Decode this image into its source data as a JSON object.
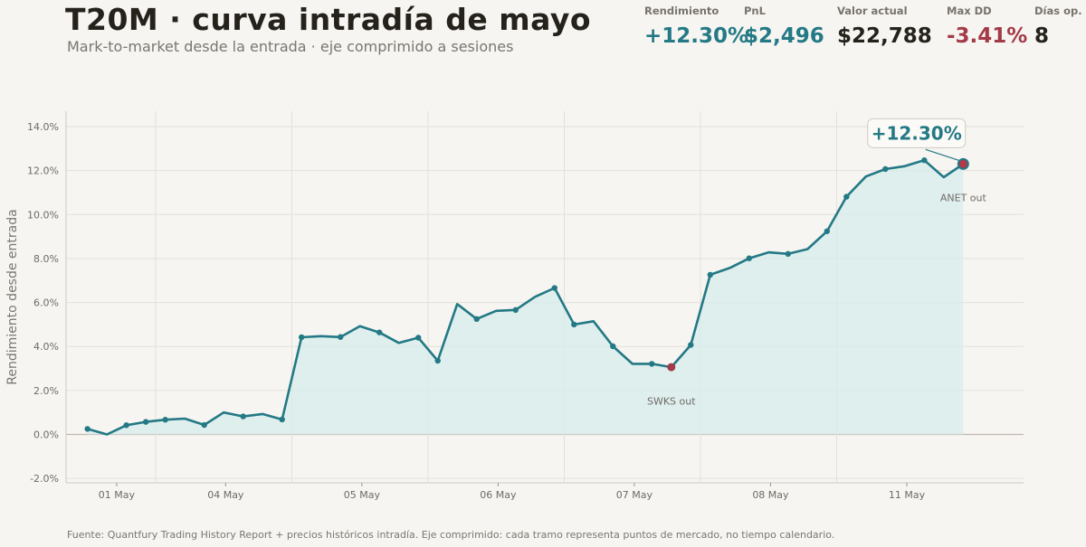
{
  "header": {
    "title": "T20M · curva intradía de mayo",
    "subtitle": "Mark-to-market desde la entrada · eje comprimido a sesiones"
  },
  "kpis": [
    {
      "label": "Rendimiento",
      "value": "+12.30%",
      "color": "#237985"
    },
    {
      "label": "PnL",
      "value": "$2,496",
      "color": "#237985"
    },
    {
      "label": "Valor actual",
      "value": "$22,788",
      "color": "#25221c"
    },
    {
      "label": "Max DD",
      "value": "-3.41%",
      "color": "#a33a48"
    },
    {
      "label": "Días op.",
      "value": "8",
      "color": "#25221c"
    }
  ],
  "footer": "Fuente: Quantfury Trading History Report + precios históricos intradía. Eje comprimido: cada tramo representa puntos de mercado, no tiempo calendario.",
  "colors": {
    "line": "#237985",
    "fill": "#d7ecec",
    "low_marker": "#a33a48",
    "end_marker": "#b0394a",
    "grid": "#e3e0da",
    "zero_line": "#bdb9b2"
  },
  "chart_data": {
    "type": "line",
    "ylabel": "Rendimiento desde entrada",
    "ylim": [
      -2.2,
      14.7
    ],
    "yticks": [
      -2,
      0,
      2,
      4,
      6,
      8,
      10,
      12,
      14
    ],
    "ytick_labels": [
      "-2.0%",
      "0.0%",
      "2.0%",
      "4.0%",
      "6.0%",
      "8.0%",
      "10.0%",
      "12.0%",
      "14.0%"
    ],
    "xlim": [
      -1.1,
      48.1
    ],
    "x_ticks": [
      {
        "label": "01 May",
        "x": 1.5
      },
      {
        "label": "04 May",
        "x": 7.1
      },
      {
        "label": "05 May",
        "x": 14.1
      },
      {
        "label": "06 May",
        "x": 21.1
      },
      {
        "label": "07 May",
        "x": 28.1
      },
      {
        "label": "08 May",
        "x": 35.1
      },
      {
        "label": "11 May",
        "x": 42.1
      }
    ],
    "session_breaks": [
      3.5,
      10.5,
      17.5,
      24.5,
      31.5,
      38.5
    ],
    "grid": true,
    "series": [
      {
        "values": [
          0.25,
          0.0,
          0.42,
          0.57,
          0.67,
          0.72,
          0.43,
          1.0,
          0.82,
          0.93,
          0.68,
          4.42,
          4.47,
          4.43,
          4.92,
          4.64,
          4.16,
          4.4,
          3.35,
          5.93,
          5.25,
          5.62,
          5.66,
          6.26,
          6.66,
          5.0,
          5.15,
          4.01,
          3.21,
          3.21,
          3.06,
          4.07,
          7.26,
          7.57,
          8.01,
          8.28,
          8.21,
          8.43,
          9.24,
          10.81,
          11.73,
          12.07,
          12.2,
          12.47,
          11.7,
          12.3
        ],
        "markers": [
          0,
          2,
          3,
          4,
          6,
          8,
          10,
          11,
          13,
          15,
          17,
          18,
          20,
          22,
          24,
          25,
          27,
          29,
          31,
          32,
          34,
          36,
          38,
          39,
          41,
          43
        ]
      }
    ],
    "low_point": {
      "x": 30,
      "y": 3.06
    },
    "end_point": {
      "x": 45,
      "y": 12.3
    },
    "annotations": [
      {
        "text": "SWKS out",
        "x": 30,
        "y": 1.35
      },
      {
        "text": "ANET out",
        "x": 45,
        "y": 10.6
      }
    ],
    "callout": {
      "text": "+12.30%",
      "x": 42.6,
      "y": 13.7
    }
  }
}
